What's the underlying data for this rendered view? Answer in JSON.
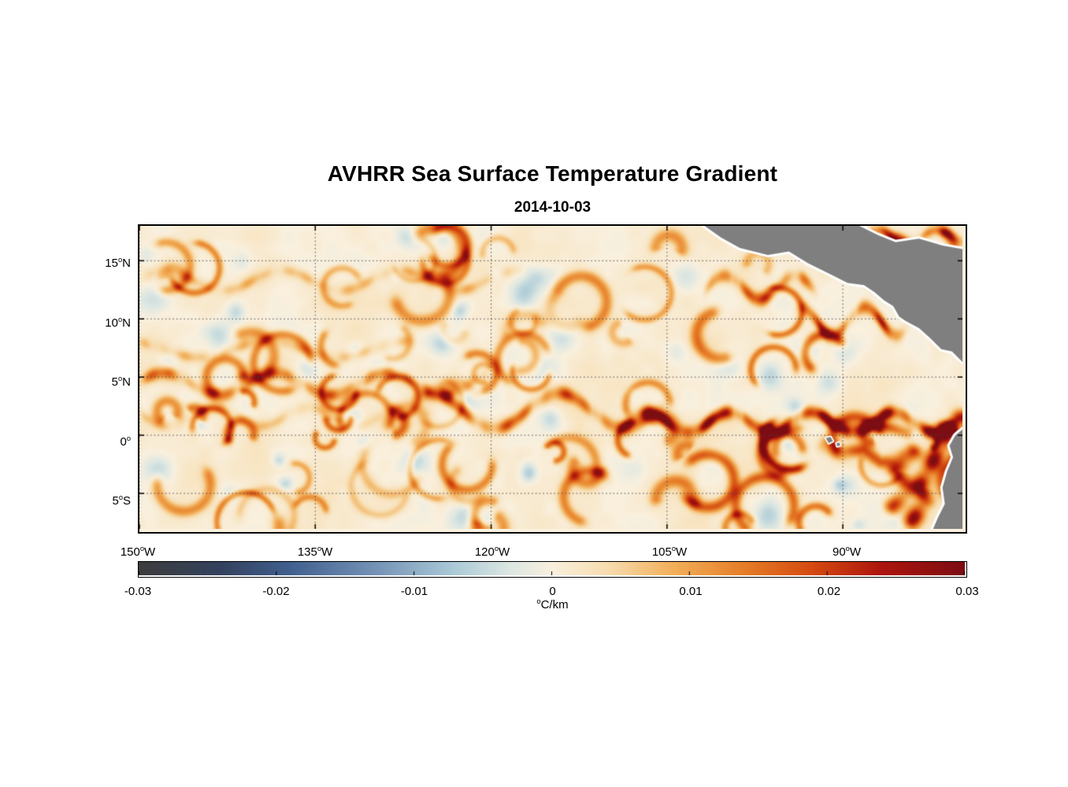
{
  "chart_data": {
    "type": "heatmap",
    "title": "AVHRR Sea Surface Temperature Gradient",
    "subtitle": "2014-10-03",
    "deg_mark": "o",
    "axes": {
      "lon_range": [
        -150,
        -79.8
      ],
      "lat_range": [
        -8.05,
        18
      ],
      "x_ticks": [
        {
          "num": "150",
          "hemi": "W",
          "lon": -150
        },
        {
          "num": "135",
          "hemi": "W",
          "lon": -135
        },
        {
          "num": "120",
          "hemi": "W",
          "lon": -120
        },
        {
          "num": "105",
          "hemi": "W",
          "lon": -105
        },
        {
          "num": "90",
          "hemi": "W",
          "lon": -90
        }
      ],
      "y_ticks": [
        {
          "num": "15",
          "hemi": "N",
          "lat": 15
        },
        {
          "num": "10",
          "hemi": "N",
          "lat": 10
        },
        {
          "num": "5",
          "hemi": "N",
          "lat": 5
        },
        {
          "num": "0",
          "hemi": "",
          "lat": 0
        },
        {
          "num": "5",
          "hemi": "S",
          "lat": -5
        }
      ],
      "grid": {
        "style": "dotted",
        "color": "#45424b"
      }
    },
    "colorbar": {
      "range": [
        -0.03,
        0.03
      ],
      "ticks": [
        {
          "label": "-0.03",
          "v": -0.03
        },
        {
          "label": "-0.02",
          "v": -0.02
        },
        {
          "label": "-0.01",
          "v": -0.01
        },
        {
          "label": "0",
          "v": 0
        },
        {
          "label": "0.01",
          "v": 0.01
        },
        {
          "label": "0.02",
          "v": 0.02
        },
        {
          "label": "0.03",
          "v": 0.03
        }
      ],
      "unit": "C/km",
      "colormap": [
        {
          "v": -0.03,
          "c": "#3d3d3d"
        },
        {
          "v": -0.024,
          "c": "#34425f"
        },
        {
          "v": -0.019,
          "c": "#41608f"
        },
        {
          "v": -0.013,
          "c": "#7391b5"
        },
        {
          "v": -0.007,
          "c": "#accbd8"
        },
        {
          "v": -0.003,
          "c": "#dde7e2"
        },
        {
          "v": 0.0,
          "c": "#f9f0de"
        },
        {
          "v": 0.004,
          "c": "#f7ddb0"
        },
        {
          "v": 0.009,
          "c": "#f2ae58"
        },
        {
          "v": 0.014,
          "c": "#e67d28"
        },
        {
          "v": 0.019,
          "c": "#d44a10"
        },
        {
          "v": 0.024,
          "c": "#ad150e"
        },
        {
          "v": 0.03,
          "c": "#7c0d13"
        }
      ]
    },
    "land": {
      "color": "#7f7f7f",
      "coast_halo": "#ffffff",
      "polygons": [
        {
          "name": "central-america",
          "pts": [
            [
              -101.8,
              18
            ],
            [
              -100.4,
              17.0
            ],
            [
              -98.8,
              16.1
            ],
            [
              -96.4,
              15.5
            ],
            [
              -94.6,
              15.8
            ],
            [
              -93.0,
              14.8
            ],
            [
              -91.0,
              13.8
            ],
            [
              -89.6,
              13.1
            ],
            [
              -88.2,
              12.9
            ],
            [
              -87.3,
              12.3
            ],
            [
              -86.5,
              11.6
            ],
            [
              -85.7,
              11.1
            ],
            [
              -85.2,
              10.2
            ],
            [
              -84.6,
              9.8
            ],
            [
              -83.5,
              9.2
            ],
            [
              -82.6,
              8.4
            ],
            [
              -81.6,
              7.4
            ],
            [
              -80.7,
              7.2
            ],
            [
              -79.8,
              6.3
            ],
            [
              -79.8,
              16.0
            ],
            [
              -81.5,
              16.3
            ],
            [
              -83.5,
              16.9
            ],
            [
              -85.5,
              16.6
            ],
            [
              -87.0,
              17.2
            ],
            [
              -88.6,
              18.0
            ]
          ]
        },
        {
          "name": "south-america",
          "pts": [
            [
              -79.8,
              0.5
            ],
            [
              -80.4,
              0.0
            ],
            [
              -80.9,
              -0.9
            ],
            [
              -80.6,
              -1.9
            ],
            [
              -81.1,
              -3.1
            ],
            [
              -81.5,
              -4.5
            ],
            [
              -81.3,
              -5.9
            ],
            [
              -81.9,
              -7.1
            ],
            [
              -82.3,
              -8.05
            ],
            [
              -79.8,
              -8.05
            ]
          ]
        },
        {
          "name": "galapagos-west",
          "pts": [
            [
              -91.45,
              -0.25
            ],
            [
              -91.05,
              -0.15
            ],
            [
              -90.85,
              -0.5
            ],
            [
              -91.2,
              -0.68
            ]
          ]
        },
        {
          "name": "galapagos-east",
          "pts": [
            [
              -90.55,
              -0.7
            ],
            [
              -90.3,
              -0.62
            ],
            [
              -90.22,
              -0.88
            ],
            [
              -90.48,
              -0.95
            ]
          ]
        }
      ]
    },
    "field": {
      "description": "Magnitude of AVHRR sea-surface temperature gradient on 2014-10-03. Strong fronts (0.02-0.03 C/km) trace the equatorial front east of 110W and the Peru/Ecuador coastal upwelling; a moderate meandering North Equatorial front (~0.015 C/km) sits near 4-5N west of 120W; weak filaments (<0.01 C/km) fill the rest of the basin. Land (Central America, northwestern South America, Galapagos) masked in gray.",
      "fronts": [
        {
          "name": "north-equatorial-front-west",
          "lon0": -150,
          "lon1": -121,
          "base_lat": 4.4,
          "wave_amp": 0.95,
          "wave_len": 9.5,
          "phase": 0.2,
          "amp": 0.0145,
          "width": 0.55
        },
        {
          "name": "equatorial-front-central",
          "lon0": -126,
          "lon1": -106,
          "base_lat": 2.1,
          "wave_amp": 1.5,
          "wave_len": 11,
          "phase": 1.1,
          "amp": 0.017,
          "width": 0.6
        },
        {
          "name": "equatorial-front-east",
          "lon0": -108,
          "lon1": -79.8,
          "base_lat": 1.1,
          "wave_amp": 0.85,
          "wave_len": 7,
          "phase": 0.4,
          "amp": 0.028,
          "width": 0.55
        },
        {
          "name": "secondary-front-7n",
          "lon0": -150,
          "lon1": -127,
          "base_lat": 7.4,
          "wave_amp": 0.7,
          "wave_len": 12,
          "phase": 2.1,
          "amp": 0.007,
          "width": 0.5
        },
        {
          "name": "band-13n",
          "lon0": -149,
          "lon1": -118,
          "base_lat": 13.3,
          "wave_amp": 0.85,
          "wave_len": 10,
          "phase": 0.8,
          "amp": 0.0068,
          "width": 0.5
        },
        {
          "name": "sub-equatorial-west",
          "lon0": -150,
          "lon1": -130,
          "base_lat": 1.6,
          "wave_amp": 0.8,
          "wave_len": 8,
          "phase": 2.8,
          "amp": 0.006,
          "width": 0.5
        },
        {
          "name": "tehuantepec-front",
          "lon0": -101,
          "lon1": -93,
          "base_lat": 12.7,
          "wave_amp": 1.0,
          "wave_len": 6,
          "phase": 0.6,
          "amp": 0.019,
          "width": 0.6
        },
        {
          "name": "papagayo-front",
          "lon0": -93.5,
          "lon1": -85,
          "base_lat": 9.8,
          "wave_amp": 1.2,
          "wave_len": 5.5,
          "phase": 1.7,
          "amp": 0.02,
          "width": 0.6
        },
        {
          "name": "caribbean-front",
          "lon0": -88,
          "lon1": -79.8,
          "base_lat": 17.1,
          "wave_amp": 0.5,
          "wave_len": 5,
          "phase": 0.3,
          "amp": 0.016,
          "width": 0.45
        }
      ],
      "ridges": [
        {
          "name": "peru-coastal-front",
          "amp": 0.027,
          "width": 0.75,
          "pts": [
            [
              -80.2,
              1.3
            ],
            [
              -81.2,
              -0.1
            ],
            [
              -81.9,
              -1.5
            ],
            [
              -82.7,
              -3.0
            ],
            [
              -83.5,
              -4.4
            ],
            [
              -83.1,
              -5.8
            ],
            [
              -84.2,
              -7.5
            ]
          ]
        },
        {
          "name": "peru-offshore-eddies",
          "amp": 0.02,
          "width": 0.7,
          "pts": [
            [
              -84.0,
              -1.5
            ],
            [
              -85.5,
              -3.0
            ],
            [
              -84.5,
              -4.8
            ],
            [
              -85.8,
              -6.2
            ]
          ]
        },
        {
          "name": "galapagos-wake",
          "amp": 0.016,
          "width": 0.6,
          "pts": [
            [
              -91.6,
              -0.8
            ],
            [
              -89.9,
              -1.6
            ],
            [
              -88.2,
              -1.2
            ],
            [
              -86.8,
              -2.3
            ],
            [
              -85.2,
              -2.0
            ]
          ]
        },
        {
          "name": "ecuador-offshore",
          "amp": 0.017,
          "width": 0.5,
          "pts": [
            [
              -84.5,
              0.3
            ],
            [
              -86.5,
              0.9
            ],
            [
              -88.5,
              0.4
            ],
            [
              -90.6,
              1.0
            ]
          ]
        }
      ],
      "texture": {
        "seed": 20141003,
        "arcs": 85,
        "arc_amp": [
          0.0045,
          0.013
        ],
        "arc_radius": [
          0.7,
          2.6
        ],
        "arc_width": [
          0.28,
          0.6
        ],
        "east_boost": 1.5,
        "eq_boost": 1.25,
        "neg_blobs": 55,
        "neg_amp": [
          -0.006,
          -0.002
        ],
        "neg_width": [
          0.5,
          1.3
        ],
        "noise_amp": 0.0022,
        "noise_scale": 2.8,
        "bias": 0.0008
      }
    }
  }
}
